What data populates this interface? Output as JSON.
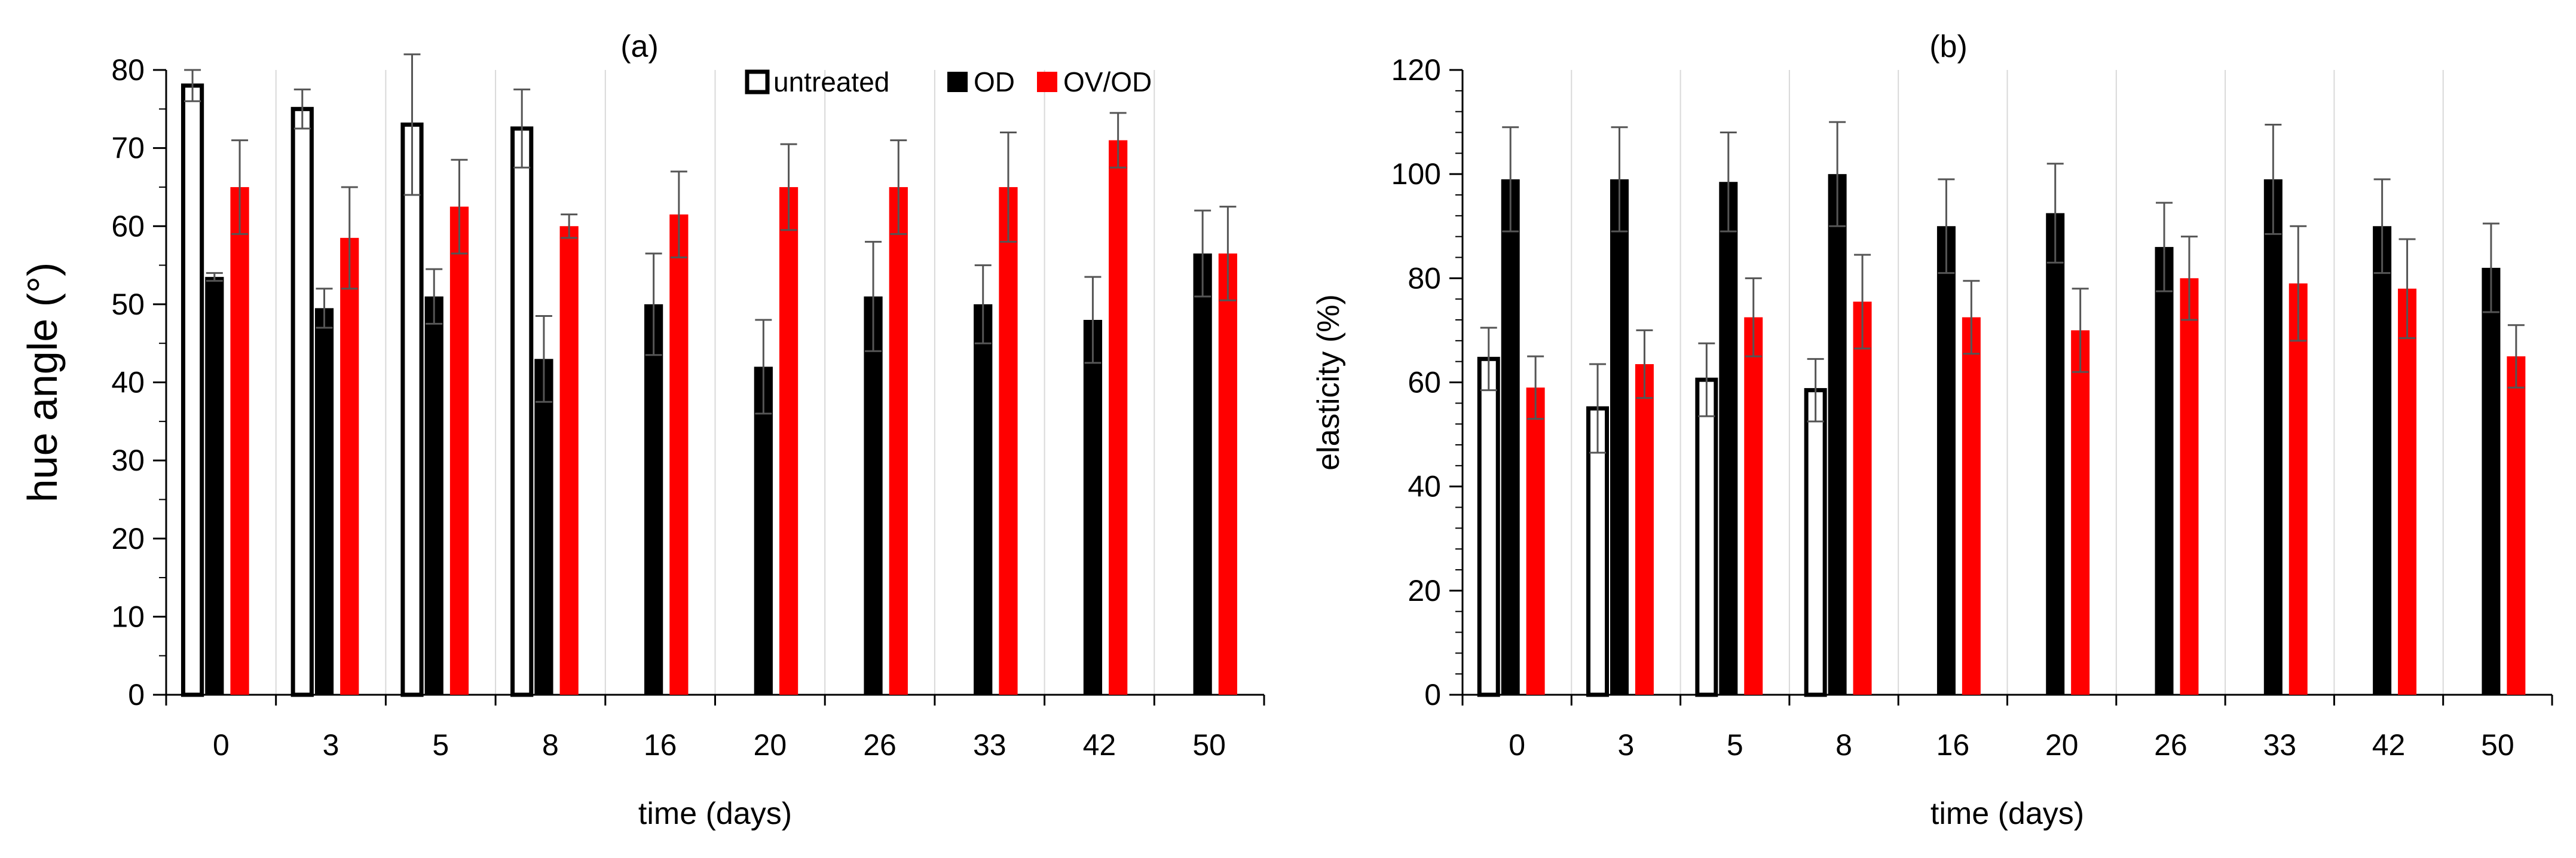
{
  "chart_data": [
    {
      "type": "bar",
      "panel_label": "(a)",
      "title": "(a)",
      "xlabel": "time (days)",
      "ylabel": "hue angle (°)",
      "categories": [
        "0",
        "3",
        "5",
        "8",
        "16",
        "20",
        "26",
        "33",
        "42",
        "50"
      ],
      "ylim": [
        0,
        80
      ],
      "yticks": [
        "0",
        "10",
        "20",
        "30",
        "40",
        "50",
        "60",
        "70",
        "80"
      ],
      "grid": "vertical category separators",
      "legend_position": "top-right",
      "series": [
        {
          "name": "untreated",
          "style": "outline",
          "color": "#000000",
          "values": [
            78,
            75,
            73,
            72.5,
            null,
            null,
            null,
            null,
            null,
            null
          ],
          "errors": [
            2,
            2.5,
            9,
            5,
            null,
            null,
            null,
            null,
            null,
            null
          ]
        },
        {
          "name": "OD",
          "style": "filled",
          "color": "#000000",
          "values": [
            53.5,
            49.5,
            51,
            43,
            50,
            42,
            51,
            50,
            48,
            56.5
          ],
          "errors": [
            0.5,
            2.5,
            3.5,
            5.5,
            6.5,
            6,
            7,
            5,
            5.5,
            5.5
          ]
        },
        {
          "name": "OV/OD",
          "style": "filled",
          "color": "#ff0000",
          "values": [
            65,
            58.5,
            62.5,
            60,
            61.5,
            65,
            65,
            65,
            71,
            56.5
          ],
          "errors": [
            6,
            6.5,
            6,
            1.5,
            5.5,
            5.5,
            6,
            7,
            3.5,
            6
          ]
        }
      ]
    },
    {
      "type": "bar",
      "panel_label": "(b)",
      "title": "(b)",
      "xlabel": "time (days)",
      "ylabel": "elasticity (%)",
      "categories": [
        "0",
        "3",
        "5",
        "8",
        "16",
        "20",
        "26",
        "33",
        "42",
        "50"
      ],
      "ylim": [
        0,
        120
      ],
      "yticks": [
        "0",
        "20",
        "40",
        "60",
        "80",
        "100",
        "120"
      ],
      "grid": "vertical category separators",
      "legend_position": "none",
      "series": [
        {
          "name": "untreated",
          "style": "outline",
          "color": "#000000",
          "values": [
            64.5,
            55,
            60.5,
            58.5,
            null,
            null,
            null,
            null,
            null,
            null
          ],
          "errors": [
            6,
            8.5,
            7,
            6,
            null,
            null,
            null,
            null,
            null,
            null
          ]
        },
        {
          "name": "OD",
          "style": "filled",
          "color": "#000000",
          "values": [
            99,
            99,
            98.5,
            100,
            90,
            92.5,
            86,
            99,
            90,
            82
          ],
          "errors": [
            10,
            10,
            9.5,
            10,
            9,
            9.5,
            8.5,
            10.5,
            9,
            8.5
          ]
        },
        {
          "name": "OV/OD",
          "style": "filled",
          "color": "#ff0000",
          "values": [
            59,
            63.5,
            72.5,
            75.5,
            72.5,
            70,
            80,
            79,
            78,
            65
          ],
          "errors": [
            6,
            6.5,
            7.5,
            9,
            7,
            8,
            8,
            11,
            9.5,
            6
          ]
        }
      ]
    }
  ]
}
